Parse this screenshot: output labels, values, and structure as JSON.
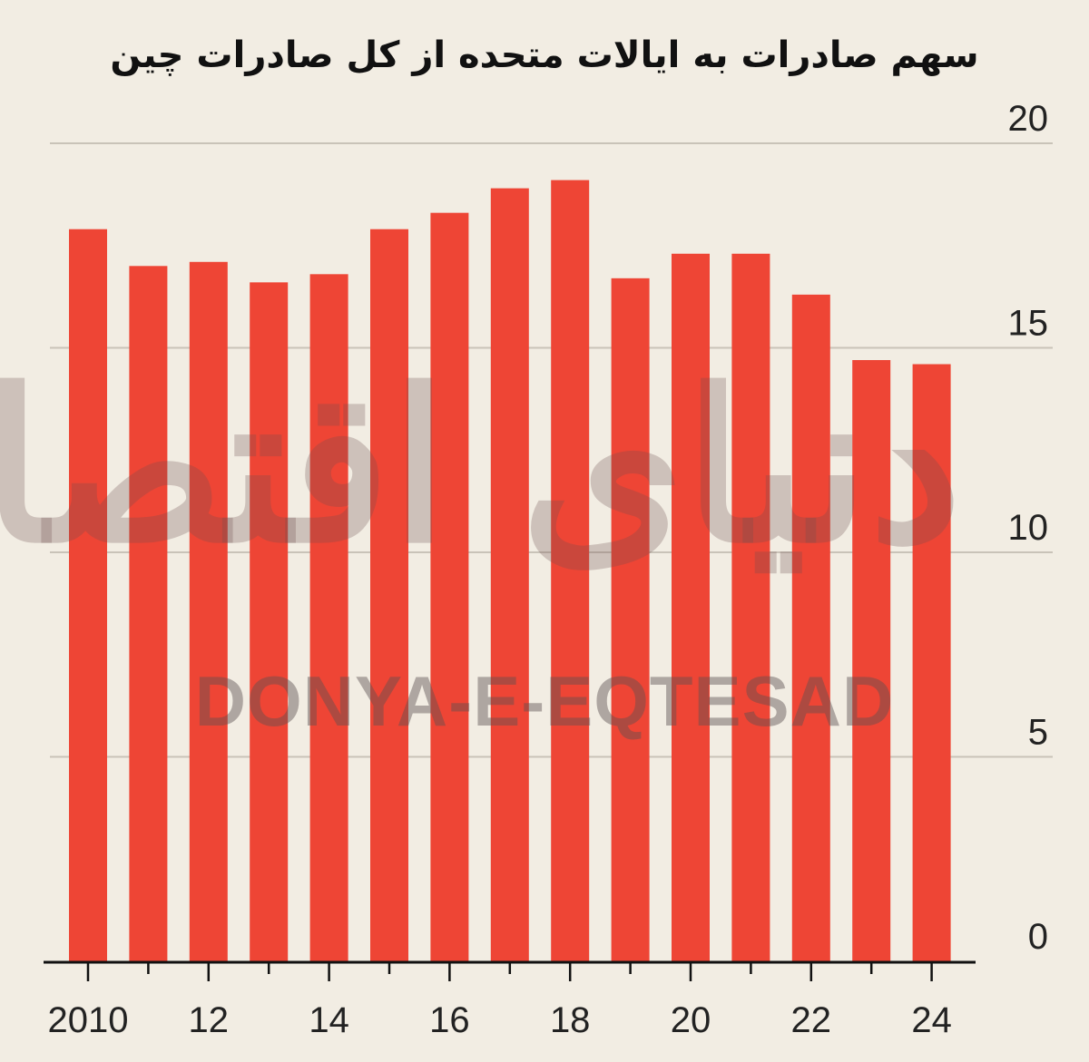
{
  "chart_data": {
    "type": "bar",
    "title": "سهم صادرات به ایالات متحده از کل صادرات چین",
    "xlabel": "",
    "ylabel": "",
    "categories": [
      "2010",
      "2011",
      "2012",
      "2013",
      "2014",
      "2015",
      "2016",
      "2017",
      "2018",
      "2019",
      "2020",
      "2021",
      "2022",
      "2023",
      "2024"
    ],
    "x_tick_labels": [
      "2010",
      "12",
      "14",
      "16",
      "18",
      "20",
      "22",
      "24"
    ],
    "values": [
      17.9,
      17.0,
      17.1,
      16.6,
      16.8,
      17.9,
      18.3,
      18.9,
      19.1,
      16.7,
      17.3,
      17.3,
      16.3,
      14.7,
      14.6
    ],
    "ylim": [
      0,
      20
    ],
    "y_ticks": [
      0,
      5,
      10,
      15,
      20
    ],
    "y_axis_position": "right",
    "grid": true,
    "bar_color": "#ee4535",
    "background_color": "#f2ede3",
    "grid_color": "#c9c3b8"
  },
  "watermark": {
    "text_fa": "دنیای اقتصاد",
    "text_en": "DONYA-E-EQTESAD"
  }
}
